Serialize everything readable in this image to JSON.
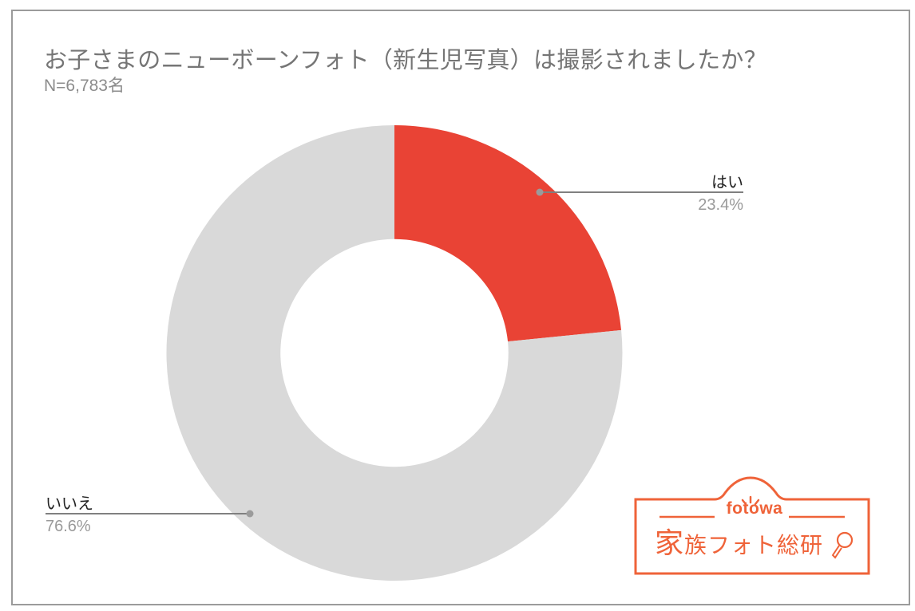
{
  "header": {
    "title": "お子さまのニューボーンフォト（新生児写真）は撮影されましたか？",
    "sample_size": "N=6,783名"
  },
  "colors": {
    "yes": "#E94335",
    "no": "#D9D9D9",
    "leader": "#808080",
    "leader_dot": "#9b9b9b",
    "brand": "#EF6339",
    "frame": "#9B9B9B"
  },
  "labels": {
    "yes": {
      "name": "はい",
      "value": "23.4%"
    },
    "no": {
      "name": "いいえ",
      "value": "76.6%"
    }
  },
  "logo": {
    "brand": "fotowa",
    "main_a": "家",
    "main_b": "族",
    "main_c": "フォト総研",
    "icon": "magnifier-icon"
  },
  "chart_data": {
    "type": "pie",
    "variant": "donut",
    "title": "お子さまのニューボーンフォト（新生児写真）は撮影されましたか？",
    "subtitle": "N=6,783名",
    "categories": [
      "はい",
      "いいえ"
    ],
    "values": [
      23.4,
      76.6
    ],
    "unit": "%",
    "colors": [
      "#E94335",
      "#D9D9D9"
    ],
    "start_angle": "12 o'clock, clockwise",
    "hole_ratio": 0.5,
    "legend": "none (leader-line labels)",
    "n": 6783
  }
}
